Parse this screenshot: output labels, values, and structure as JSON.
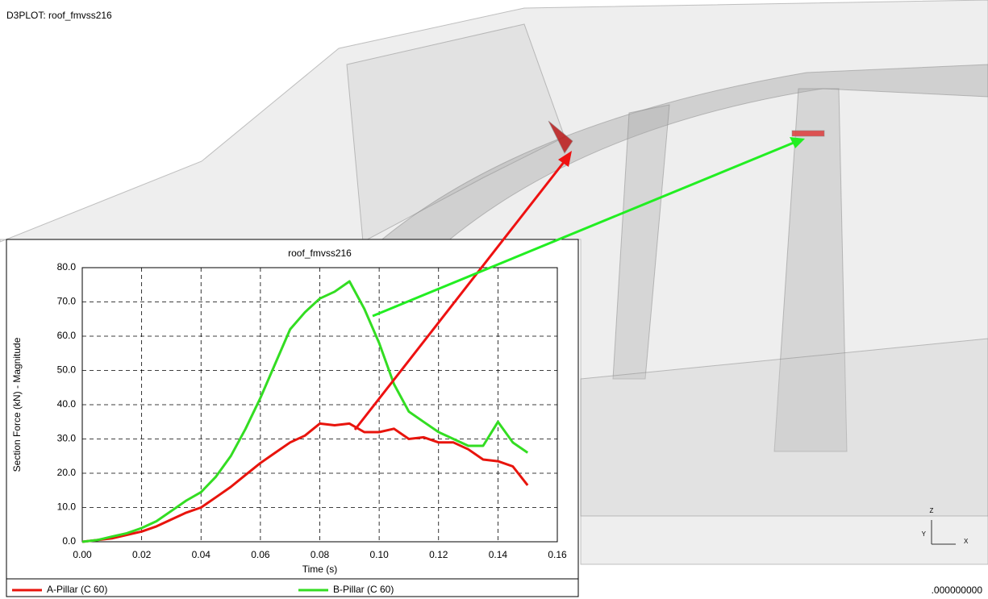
{
  "window_title": "D3PLOT: roof_fmvss216",
  "time_display": ".000000000",
  "triad": {
    "z": "Z",
    "y": "Y",
    "x": "X"
  },
  "chart_data": {
    "type": "line",
    "title": "roof_fmvss216",
    "x_label": "Time (s)",
    "y_label": "Section Force (kN) - Magnitude",
    "x": [
      0,
      0.005,
      0.01,
      0.015,
      0.02,
      0.025,
      0.03,
      0.035,
      0.04,
      0.045,
      0.05,
      0.055,
      0.06,
      0.065,
      0.07,
      0.075,
      0.08,
      0.085,
      0.09,
      0.095,
      0.1,
      0.105,
      0.11,
      0.115,
      0.12,
      0.125,
      0.13,
      0.135,
      0.14,
      0.145,
      0.15
    ],
    "series": [
      {
        "name": "A-Pillar (C 60)",
        "color": "#e8140c",
        "values": [
          0,
          0.5,
          1,
          2,
          3,
          4.5,
          6.5,
          8.5,
          10,
          13,
          16,
          19.5,
          23,
          26,
          29,
          31,
          34.5,
          34,
          34.5,
          32,
          32,
          33,
          30,
          30.5,
          29,
          29,
          27,
          24,
          23.5,
          22,
          16.5
        ]
      },
      {
        "name": "B-Pillar (C 60)",
        "color": "#33dd22",
        "values": [
          0,
          0.5,
          1.5,
          2.5,
          4,
          6,
          9,
          12,
          14.5,
          19,
          25,
          33,
          42,
          52,
          62,
          67,
          71,
          73,
          76,
          68,
          58,
          46,
          38,
          35,
          32,
          30,
          28,
          28,
          35,
          29,
          26
        ]
      }
    ],
    "xlim": [
      0,
      0.16
    ],
    "xticks": [
      {
        "value": 0,
        "label": "0.00"
      },
      {
        "value": 0.02,
        "label": "0.02"
      },
      {
        "value": 0.04,
        "label": "0.04"
      },
      {
        "value": 0.06,
        "label": "0.06"
      },
      {
        "value": 0.08,
        "label": "0.08"
      },
      {
        "value": 0.1,
        "label": "0.10"
      },
      {
        "value": 0.12,
        "label": "0.12"
      },
      {
        "value": 0.14,
        "label": "0.14"
      },
      {
        "value": 0.16,
        "label": "0.16"
      }
    ],
    "ylim": [
      0,
      80
    ],
    "yticks": [
      {
        "value": 0,
        "label": "0.0"
      },
      {
        "value": 10,
        "label": "10.0"
      },
      {
        "value": 20,
        "label": "20.0"
      },
      {
        "value": 30,
        "label": "30.0"
      },
      {
        "value": 40,
        "label": "40.0"
      },
      {
        "value": 50,
        "label": "50.0"
      },
      {
        "value": 60,
        "label": "60.0"
      },
      {
        "value": 70,
        "label": "70.0"
      },
      {
        "value": 80,
        "label": "80.0"
      }
    ],
    "grid": true
  }
}
